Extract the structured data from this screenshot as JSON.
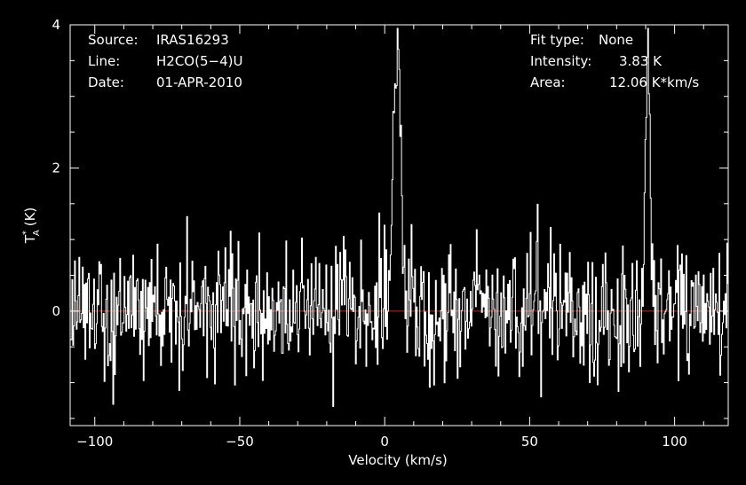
{
  "info_left": [
    {
      "key": "Source:",
      "value": "IRAS16293"
    },
    {
      "key": "Line:",
      "value": "H2CO(5−4)U"
    },
    {
      "key": "Date:",
      "value": "01-APR-2010"
    }
  ],
  "info_right": [
    {
      "key": "Fit type:",
      "value": "None"
    },
    {
      "key": "Intensity:",
      "value": "3.83 K"
    },
    {
      "key": "Area:",
      "value": "12.06 K*km/s"
    }
  ],
  "colors": {
    "background": "#000000",
    "axes": "#ffffff",
    "spectrum": "#ffffff",
    "baseline": "#d42020"
  },
  "chart_data": {
    "type": "line",
    "xlabel": "Velocity (km/s)",
    "ylabel_main": "T",
    "ylabel_sup": "*",
    "ylabel_sub": "A",
    "ylabel_unit": "(K)",
    "xlim": [
      -108.5,
      118.5
    ],
    "ylim": [
      -1.6,
      4.0
    ],
    "xticks": [
      -100,
      -50,
      0,
      50,
      100
    ],
    "yticks": [
      0,
      2,
      4
    ],
    "baseline_y": 0,
    "noise_rms": 0.45,
    "peaks": [
      {
        "center": 4.2,
        "height": 3.83,
        "width": 1.2
      },
      {
        "center": 90.6,
        "height": 3.6,
        "width": 0.8
      }
    ]
  }
}
